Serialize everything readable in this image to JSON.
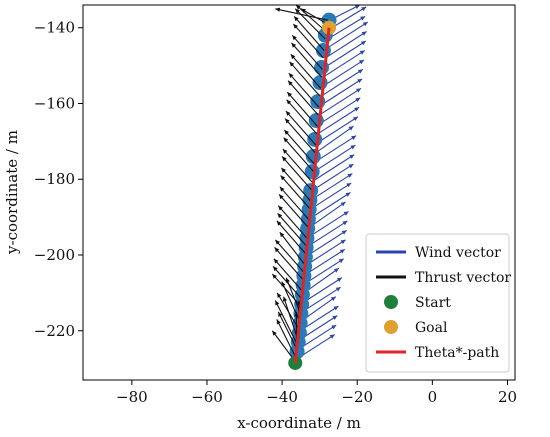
{
  "chart_data": {
    "type": "scatter",
    "title": "",
    "xlabel": "x-coordinate / m",
    "ylabel": "y-coordinate / m",
    "xlim": [
      -93,
      22
    ],
    "ylim": [
      -233,
      -134
    ],
    "xticks": [
      -80,
      -60,
      -40,
      -20,
      0,
      20
    ],
    "yticks": [
      -140,
      -160,
      -180,
      -200,
      -220
    ],
    "xtick_labels": [
      "−80",
      "−60",
      "−40",
      "−20",
      "0",
      "20"
    ],
    "ytick_labels": [
      "−140",
      "−160",
      "−180",
      "−200",
      "−220"
    ],
    "grid": false,
    "legend": {
      "position": "lower-right",
      "entries": [
        {
          "label": "Wind vector",
          "kind": "line",
          "color": "#2a44a8"
        },
        {
          "label": "Thrust vector",
          "kind": "line",
          "color": "#111111"
        },
        {
          "label": "Start",
          "kind": "marker",
          "color": "#1e7f3c"
        },
        {
          "label": "Goal",
          "kind": "marker",
          "color": "#e0a030"
        },
        {
          "label": "Theta*-path",
          "kind": "line",
          "color": "#e02424"
        }
      ]
    },
    "colors": {
      "wind": "#2a44a8",
      "thrust": "#111111",
      "waypoint": "#2a7ab8",
      "start": "#1e7f3c",
      "goal": "#e0a030",
      "path": "#e02424"
    },
    "path": [
      [
        -36.5,
        -228.5
      ],
      [
        -27.5,
        -140
      ]
    ],
    "waypoints": [
      [
        -36.0,
        -225.5
      ],
      [
        -35.7,
        -223.0
      ],
      [
        -35.4,
        -220.5
      ],
      [
        -35.2,
        -218.0
      ],
      [
        -35.0,
        -215.5
      ],
      [
        -34.8,
        -213.0
      ],
      [
        -34.6,
        -210.5
      ],
      [
        -34.4,
        -208.0
      ],
      [
        -34.2,
        -205.5
      ],
      [
        -34.0,
        -203.0
      ],
      [
        -33.8,
        -200.5
      ],
      [
        -33.6,
        -198.0
      ],
      [
        -33.4,
        -195.5
      ],
      [
        -33.2,
        -193.0
      ],
      [
        -33.0,
        -190.5
      ],
      [
        -32.8,
        -188.0
      ],
      [
        -32.6,
        -185.5
      ],
      [
        -32.4,
        -183.0
      ],
      [
        -32.0,
        -178.0
      ],
      [
        -31.7,
        -174.0
      ],
      [
        -31.3,
        -169.5
      ],
      [
        -30.9,
        -164.5
      ],
      [
        -30.5,
        -159.5
      ],
      [
        -29.9,
        -154.5
      ],
      [
        -29.5,
        -150.5
      ],
      [
        -29.0,
        -146.0
      ],
      [
        -28.5,
        -142.0
      ]
    ],
    "wind_vectors": [
      [
        -37,
        -228,
        11,
        7
      ],
      [
        -36.6,
        -225.5,
        11,
        7
      ],
      [
        -36.3,
        -223,
        11,
        7
      ],
      [
        -36.0,
        -220.5,
        11,
        7
      ],
      [
        -35.7,
        -218,
        10,
        7
      ],
      [
        -35.4,
        -215.5,
        11,
        7
      ],
      [
        -35.1,
        -213,
        11,
        7
      ],
      [
        -34.9,
        -210.5,
        10,
        7
      ],
      [
        -34.6,
        -208,
        11,
        7
      ],
      [
        -34.3,
        -205.5,
        11,
        7
      ],
      [
        -34.1,
        -203,
        11,
        7
      ],
      [
        -33.8,
        -200.5,
        11,
        7
      ],
      [
        -33.6,
        -198,
        11,
        7
      ],
      [
        -33.3,
        -195.5,
        11,
        7
      ],
      [
        -33.1,
        -193,
        10,
        7
      ],
      [
        -32.8,
        -190.5,
        11,
        7
      ],
      [
        -32.6,
        -188,
        11,
        7
      ],
      [
        -32.3,
        -185.5,
        11,
        7
      ],
      [
        -32.0,
        -183,
        11,
        7
      ],
      [
        -31.8,
        -180.5,
        11,
        7
      ],
      [
        -31.5,
        -178,
        11,
        7
      ],
      [
        -31.3,
        -175.5,
        11,
        7
      ],
      [
        -31.0,
        -173,
        10,
        7
      ],
      [
        -30.8,
        -170.5,
        11,
        7
      ],
      [
        -30.5,
        -168,
        11,
        7
      ],
      [
        -30.2,
        -165.5,
        11,
        7
      ],
      [
        -30.0,
        -163,
        11,
        7
      ],
      [
        -29.7,
        -160.5,
        11,
        7
      ],
      [
        -29.5,
        -158,
        11,
        7
      ],
      [
        -29.2,
        -155.5,
        11,
        7
      ],
      [
        -29.0,
        -153,
        11,
        7
      ],
      [
        -28.7,
        -150.5,
        11,
        7
      ],
      [
        -28.5,
        -148,
        11,
        7
      ],
      [
        -28.2,
        -145.5,
        11,
        7
      ],
      [
        -27.9,
        -143,
        10,
        6
      ],
      [
        -27.6,
        -140.5,
        10,
        6
      ],
      [
        -27.3,
        -138,
        8,
        4
      ]
    ],
    "thrust_vectors": [
      [
        -36.6,
        -228,
        -6,
        8
      ],
      [
        -36.4,
        -227,
        -5,
        10
      ],
      [
        -36.2,
        -226,
        0,
        11
      ],
      [
        -36.0,
        -225,
        -5,
        10
      ],
      [
        -35.8,
        -224,
        -6,
        12
      ],
      [
        -35.6,
        -223,
        -4,
        12
      ],
      [
        -35.5,
        -222,
        0,
        10
      ],
      [
        -35.3,
        -220,
        -6,
        10
      ],
      [
        -35.1,
        -218,
        -5,
        11
      ],
      [
        -34.9,
        -216,
        -4,
        10
      ],
      [
        -34.6,
        -214,
        -8,
        9
      ],
      [
        -34.4,
        -212,
        -8,
        9
      ],
      [
        -34.2,
        -210,
        -8,
        9
      ],
      [
        -34.0,
        -207,
        -8,
        9
      ],
      [
        -33.8,
        -205,
        -8,
        9
      ],
      [
        -33.6,
        -203,
        -7,
        9
      ],
      [
        -33.4,
        -200,
        -8,
        9
      ],
      [
        -33.2,
        -198,
        -8,
        9
      ],
      [
        -33.0,
        -196,
        -8,
        9
      ],
      [
        -32.8,
        -193,
        -8,
        9
      ],
      [
        -32.6,
        -191,
        -8,
        9
      ],
      [
        -32.4,
        -188,
        -8,
        9
      ],
      [
        -32.2,
        -186,
        -8,
        9
      ],
      [
        -32.0,
        -183,
        -8,
        9
      ],
      [
        -31.8,
        -181,
        -8,
        9
      ],
      [
        -31.6,
        -178,
        -8,
        9
      ],
      [
        -31.4,
        -176,
        -8,
        9
      ],
      [
        -31.2,
        -173,
        -8,
        9
      ],
      [
        -31.0,
        -171,
        -8,
        9
      ],
      [
        -30.8,
        -168,
        -8,
        9
      ],
      [
        -30.6,
        -166,
        -8,
        9
      ],
      [
        -30.4,
        -163,
        -8,
        9
      ],
      [
        -30.2,
        -161,
        -8,
        9
      ],
      [
        -30.0,
        -158,
        -8,
        9
      ],
      [
        -29.7,
        -156,
        -8,
        9
      ],
      [
        -29.5,
        -153,
        -8,
        9
      ],
      [
        -29.3,
        -151,
        -8,
        9
      ],
      [
        -29.0,
        -148,
        -8,
        9
      ],
      [
        -28.8,
        -146,
        -8,
        9
      ],
      [
        -28.5,
        -143,
        -8,
        8
      ],
      [
        -28.3,
        -141,
        -8,
        7
      ],
      [
        -28.0,
        -139,
        -7,
        4
      ],
      [
        -27.8,
        -138,
        -14,
        3
      ]
    ],
    "start": [
      -36.5,
      -228.5
    ],
    "goal": [
      -27.5,
      -140.0
    ],
    "goal_waypoint": [
      -27.5,
      -138.0
    ]
  }
}
